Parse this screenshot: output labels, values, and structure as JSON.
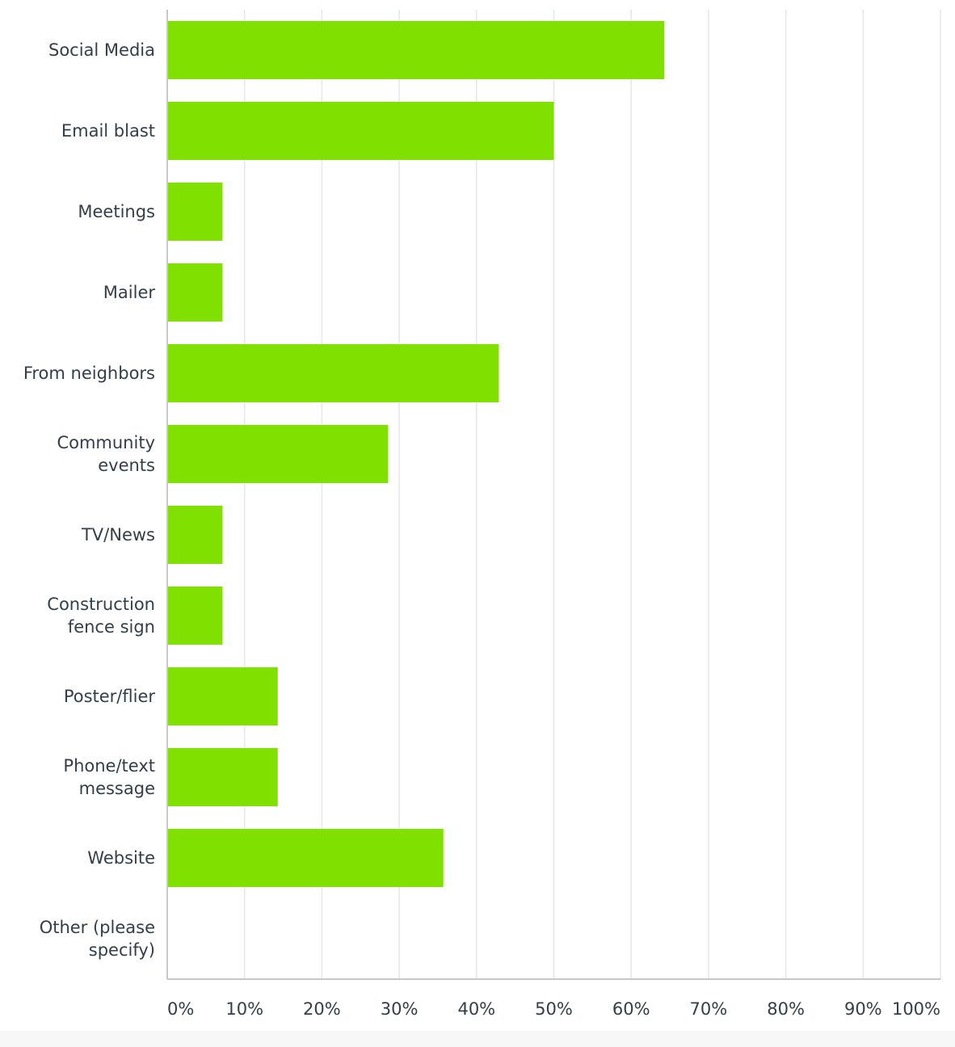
{
  "chart_data": {
    "type": "bar",
    "orientation": "horizontal",
    "categories": [
      "Social Media",
      "Email blast",
      "Meetings",
      "Mailer",
      "From neighbors",
      "Community events",
      "TV/News",
      "Construction fence sign",
      "Poster/flier",
      "Phone/text message",
      "Website",
      "Other (please specify)"
    ],
    "category_lines": [
      [
        "Social Media"
      ],
      [
        "Email blast"
      ],
      [
        "Meetings"
      ],
      [
        "Mailer"
      ],
      [
        "From neighbors"
      ],
      [
        "Community",
        "events"
      ],
      [
        "TV/News"
      ],
      [
        "Construction",
        "fence sign"
      ],
      [
        "Poster/flier"
      ],
      [
        "Phone/text",
        "message"
      ],
      [
        "Website"
      ],
      [
        "Other (please",
        "specify)"
      ]
    ],
    "values": [
      64.29,
      50.0,
      7.14,
      7.14,
      42.86,
      28.57,
      7.14,
      7.14,
      14.29,
      14.29,
      35.71,
      0
    ],
    "xlim": [
      0,
      100
    ],
    "x_ticks": [
      0,
      10,
      20,
      30,
      40,
      50,
      60,
      70,
      80,
      90,
      100
    ],
    "x_tick_labels": [
      "0%",
      "10%",
      "20%",
      "30%",
      "40%",
      "50%",
      "60%",
      "70%",
      "80%",
      "90%",
      "100%"
    ],
    "grid": true,
    "bar_color": "#80e000",
    "grid_color": "#e6e6e6",
    "axis_color": "#c8c8c8",
    "label_color": "#333e48"
  }
}
